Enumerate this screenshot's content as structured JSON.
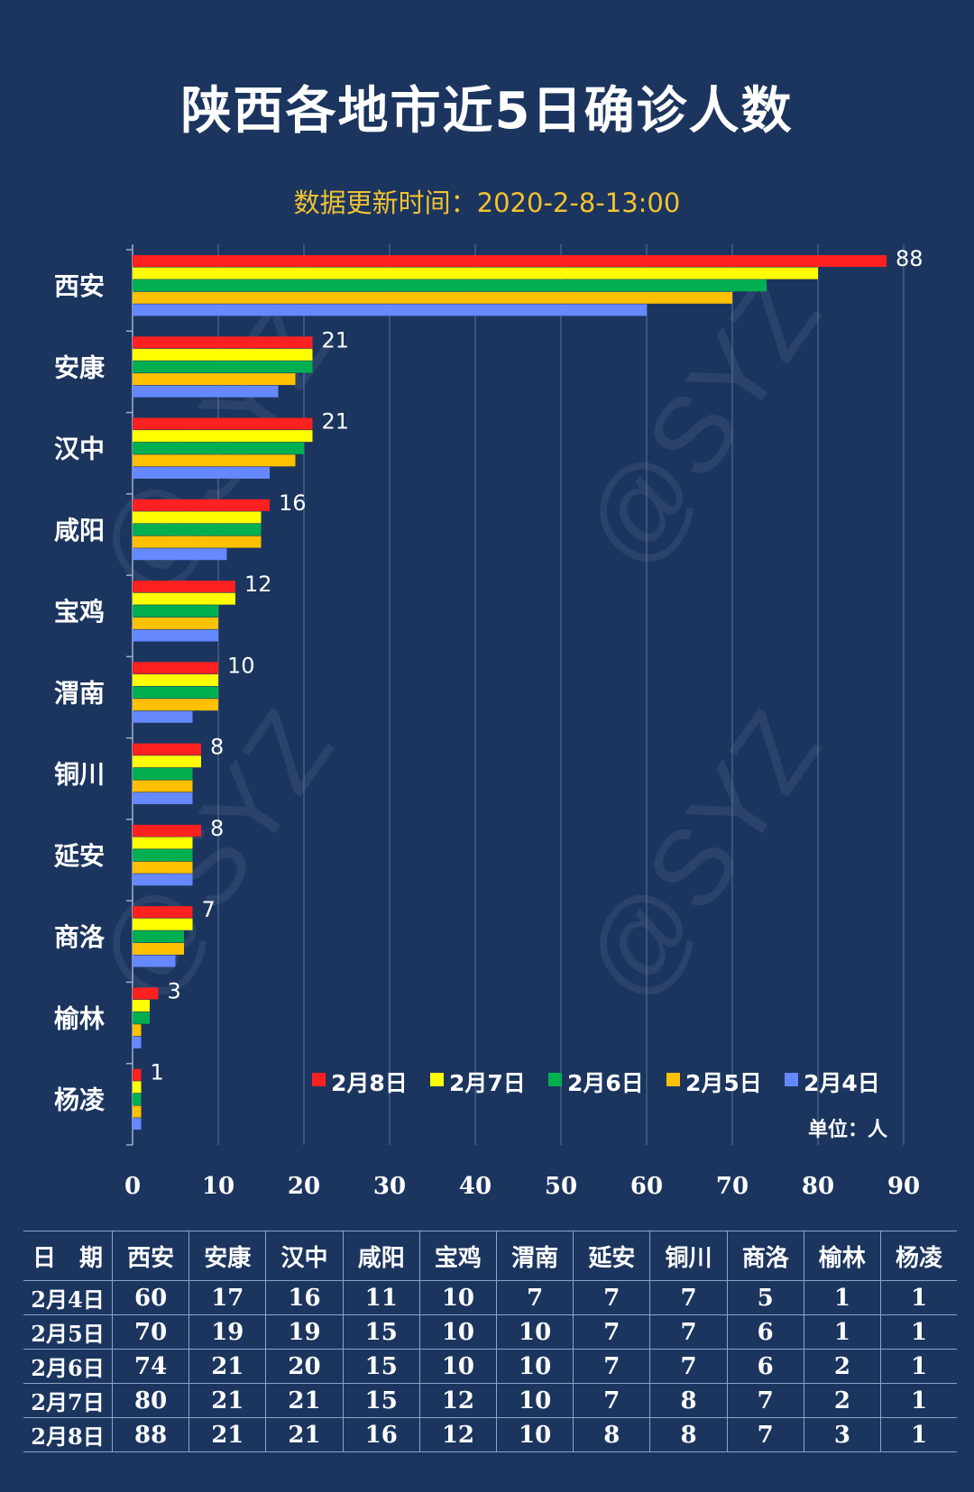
{
  "title": "陕西各地市近5日确诊人数",
  "subtitle": "数据更新时间：2020-2-8-13:00",
  "watermark": "@SYZ",
  "chart_data": {
    "type": "bar",
    "orientation": "horizontal",
    "categories": [
      "西安",
      "安康",
      "汉中",
      "咸阳",
      "宝鸡",
      "渭南",
      "铜川",
      "延安",
      "商洛",
      "榆林",
      "杨凌"
    ],
    "series": [
      {
        "name": "2月8日",
        "color": "#ff2020",
        "values": [
          88,
          21,
          21,
          16,
          12,
          10,
          8,
          8,
          7,
          3,
          1
        ]
      },
      {
        "name": "2月7日",
        "color": "#ffff00",
        "values": [
          80,
          21,
          21,
          15,
          12,
          10,
          8,
          7,
          7,
          2,
          1
        ]
      },
      {
        "name": "2月6日",
        "color": "#00b050",
        "values": [
          74,
          21,
          20,
          15,
          10,
          10,
          7,
          7,
          6,
          2,
          1
        ]
      },
      {
        "name": "2月5日",
        "color": "#ffc000",
        "values": [
          70,
          19,
          19,
          15,
          10,
          10,
          7,
          7,
          6,
          1,
          1
        ]
      },
      {
        "name": "2月4日",
        "color": "#6688ff",
        "values": [
          60,
          17,
          16,
          11,
          10,
          7,
          7,
          7,
          5,
          1,
          1
        ]
      }
    ],
    "data_labels_series": "2月8日",
    "xlim": [
      0,
      90
    ],
    "xticks": [
      0,
      10,
      20,
      30,
      40,
      50,
      60,
      70,
      80,
      90
    ],
    "grid": "vertical",
    "legend_position": "bottom-right",
    "unit_label": "单位：人"
  },
  "table": {
    "headers": [
      "日　期",
      "西安",
      "安康",
      "汉中",
      "咸阳",
      "宝鸡",
      "渭南",
      "延安",
      "铜川",
      "商洛",
      "榆林",
      "杨凌"
    ],
    "rows": [
      [
        "2月4日",
        "60",
        "17",
        "16",
        "11",
        "10",
        "7",
        "7",
        "7",
        "5",
        "1",
        "1"
      ],
      [
        "2月5日",
        "70",
        "19",
        "19",
        "15",
        "10",
        "10",
        "7",
        "7",
        "6",
        "1",
        "1"
      ],
      [
        "2月6日",
        "74",
        "21",
        "20",
        "15",
        "10",
        "10",
        "7",
        "7",
        "6",
        "2",
        "1"
      ],
      [
        "2月7日",
        "80",
        "21",
        "21",
        "15",
        "12",
        "10",
        "7",
        "8",
        "7",
        "2",
        "1"
      ],
      [
        "2月8日",
        "88",
        "21",
        "21",
        "16",
        "12",
        "10",
        "8",
        "8",
        "7",
        "3",
        "1"
      ]
    ]
  }
}
